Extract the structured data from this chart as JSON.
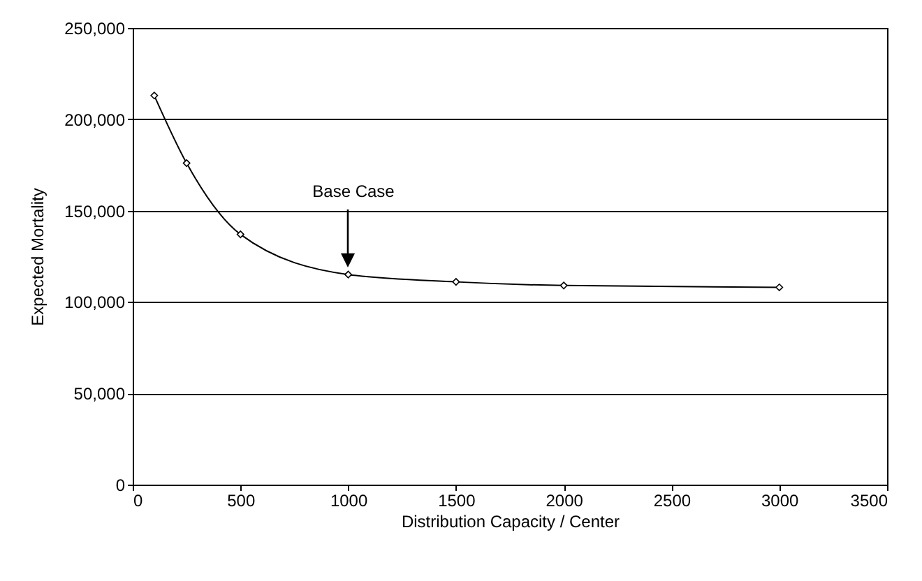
{
  "chart_data": {
    "type": "line",
    "xlabel": "Distribution Capacity / Center",
    "ylabel": "Expected Mortality",
    "x": [
      100,
      250,
      500,
      1000,
      1500,
      2000,
      3000
    ],
    "series": [
      {
        "color": "#000000",
        "values": [
          213000,
          176000,
          137000,
          115000,
          111000,
          109000,
          108000
        ]
      }
    ],
    "xlim": [
      0,
      3500
    ],
    "xticks": [
      0,
      500,
      1000,
      1500,
      2000,
      2500,
      3000,
      3500
    ],
    "ylim": [
      0,
      250000
    ],
    "yticks": [
      {
        "value": 0,
        "label": "0"
      },
      {
        "value": 50000,
        "label": "50,000"
      },
      {
        "value": 100000,
        "label": "100,000"
      },
      {
        "value": 150000,
        "label": "150,000"
      },
      {
        "value": 200000,
        "label": "200,000"
      },
      {
        "value": 250000,
        "label": "250,000"
      }
    ],
    "grid": "y",
    "marker": "diamond",
    "line_style": "solid",
    "annotations": [
      "Base Case"
    ]
  }
}
